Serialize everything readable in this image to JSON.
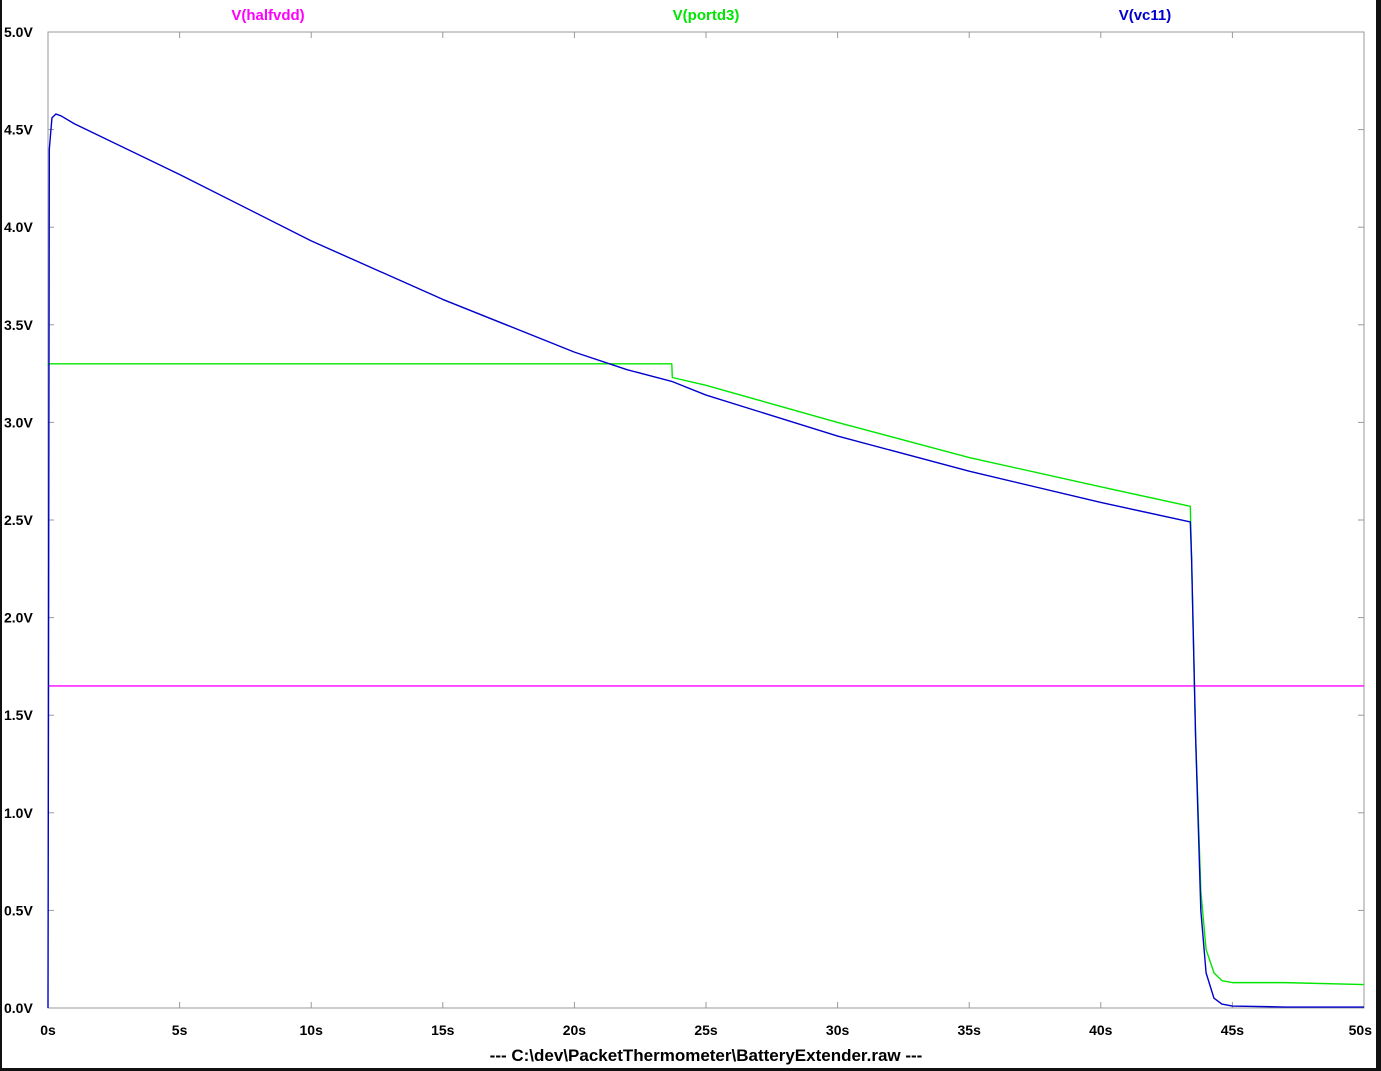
{
  "chart_data": {
    "type": "line",
    "title": "",
    "xlabel": "",
    "ylabel": "",
    "footer": "---  C:\\dev\\PacketThermometer\\BatteryExtender.raw  ---",
    "xlim": [
      0,
      50
    ],
    "ylim": [
      0,
      5
    ],
    "xticks": [
      "0s",
      "5s",
      "10s",
      "15s",
      "20s",
      "25s",
      "30s",
      "35s",
      "40s",
      "45s",
      "50s"
    ],
    "yticks": [
      "0.0V",
      "0.5V",
      "1.0V",
      "1.5V",
      "2.0V",
      "2.5V",
      "3.0V",
      "3.5V",
      "4.0V",
      "4.5V",
      "5.0V"
    ],
    "grid": false,
    "legend_placement": "top",
    "series": [
      {
        "name": "V(halfvdd)",
        "color": "#ff00ff",
        "x": [
          0,
          50
        ],
        "y": [
          1.65,
          1.65
        ]
      },
      {
        "name": "V(portd3)",
        "color": "#00e600",
        "x": [
          0,
          0.02,
          2,
          10,
          20,
          23.7,
          23.72,
          25,
          30,
          35,
          40,
          43.4,
          43.45,
          43.6,
          43.8,
          44.0,
          44.3,
          44.6,
          45,
          47,
          50
        ],
        "y": [
          3.29,
          3.3,
          3.3,
          3.3,
          3.3,
          3.3,
          3.23,
          3.19,
          3.0,
          2.82,
          2.67,
          2.57,
          2.3,
          1.4,
          0.6,
          0.3,
          0.18,
          0.14,
          0.13,
          0.13,
          0.12
        ]
      },
      {
        "name": "V(vc11)",
        "color": "#0000cc",
        "x": [
          0,
          0.05,
          0.15,
          0.3,
          0.5,
          1,
          5,
          10,
          15,
          20,
          22,
          23.7,
          25,
          30,
          35,
          40,
          43.4,
          43.45,
          43.6,
          43.8,
          44.0,
          44.3,
          44.6,
          45,
          47,
          50
        ],
        "y": [
          0.0,
          4.4,
          4.56,
          4.58,
          4.57,
          4.53,
          4.27,
          3.93,
          3.63,
          3.36,
          3.27,
          3.21,
          3.14,
          2.93,
          2.75,
          2.59,
          2.49,
          2.3,
          1.4,
          0.5,
          0.18,
          0.05,
          0.02,
          0.01,
          0.005,
          0.005
        ]
      }
    ]
  }
}
